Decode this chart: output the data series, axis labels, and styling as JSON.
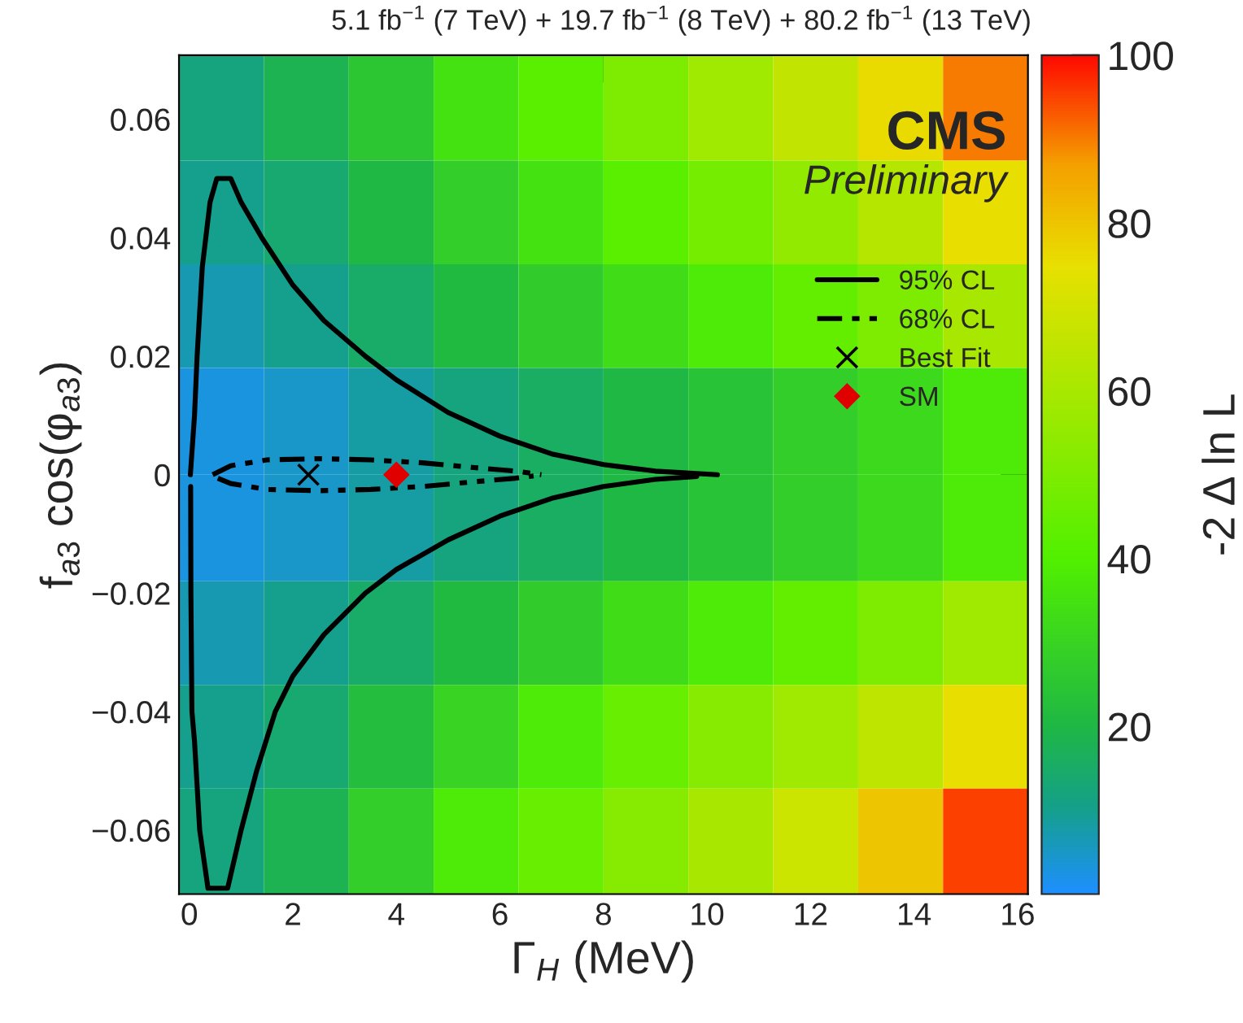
{
  "chart_data": {
    "type": "heatmap",
    "title": "5.1 fb$^{−1}$ (7 TeV) + 19.7 fb$^{−1}$ (8 TeV) + 80.2 fb$^{−1}$ (13 TeV)",
    "xlabel": "Γ$_{H}$ (MeV)",
    "ylabel": "f$_{a3}$ cos(φ$_{a3}$)",
    "clabel": "-2 Δ ln L",
    "annotations": [
      "CMS",
      "Preliminary"
    ],
    "x": [
      0.62,
      2.26,
      3.9,
      5.54,
      7.18,
      8.82,
      10.46,
      12.1,
      13.74,
      15.38
    ],
    "y": [
      0.062,
      0.044,
      0.027,
      0.009,
      -0.009,
      -0.027,
      -0.044,
      -0.062
    ],
    "cells": [
      [
        12,
        18,
        25,
        35,
        42,
        50,
        58,
        66,
        76,
        90
      ],
      [
        10,
        14,
        20,
        28,
        35,
        42,
        48,
        55,
        63,
        75
      ],
      [
        7,
        10,
        15,
        21,
        27,
        33,
        38,
        44,
        50,
        60
      ],
      [
        3,
        5,
        8,
        12,
        16,
        20,
        24,
        28,
        32,
        38
      ],
      [
        3,
        5,
        8,
        12,
        16,
        20,
        24,
        28,
        32,
        38
      ],
      [
        7,
        10,
        15,
        21,
        27,
        33,
        38,
        44,
        50,
        58
      ],
      [
        10,
        14,
        22,
        30,
        38,
        45,
        52,
        58,
        65,
        75
      ],
      [
        12,
        18,
        28,
        38,
        45,
        52,
        60,
        68,
        80,
        95
      ]
    ],
    "clim": [
      0,
      100
    ],
    "cticks": [
      20,
      40,
      60,
      80,
      100
    ],
    "xlim": [
      -0.2,
      16.2
    ],
    "xticks": [
      0,
      2,
      4,
      6,
      8,
      10,
      12,
      14,
      16
    ],
    "ylim": [
      -0.0708,
      0.0708
    ],
    "yticks": [
      {
        "value": -0.06,
        "label": "−0.06"
      },
      {
        "value": -0.04,
        "label": "−0.04"
      },
      {
        "value": -0.02,
        "label": "−0.02"
      },
      0,
      0.02,
      0.04,
      0.06
    ],
    "legend": "right",
    "series": [
      {
        "name": "95% CL",
        "type": "line",
        "line_style": "solid",
        "color": "#000000",
        "x": [
          0.02,
          0.1,
          0.15,
          0.25,
          0.4,
          0.53,
          0.8,
          1.0,
          1.4,
          2,
          2.6,
          3.4,
          4,
          5,
          6,
          7,
          8,
          9,
          10.2
        ],
        "values": [
          0,
          0.01,
          0.02,
          0.035,
          0.046,
          0.05,
          0.05,
          0.046,
          0.04,
          0.032,
          0.026,
          0.02,
          0.016,
          0.0105,
          0.0065,
          0.0035,
          0.0017,
          0.0006,
          0
        ]
      },
      {
        "type": "line",
        "line_style": "solid",
        "color": "#000000",
        "x": [
          0.025,
          0.03,
          0.05,
          0.1,
          0.2,
          0.36,
          0.74,
          1.0,
          1.3,
          1.66,
          2,
          2.6,
          3.4,
          4,
          5,
          6,
          7,
          8,
          9,
          9.8
        ],
        "values": [
          -0.002,
          -0.02,
          -0.04,
          -0.045,
          -0.06,
          -0.0698,
          -0.0698,
          -0.06,
          -0.05,
          -0.04,
          -0.034,
          -0.027,
          -0.02,
          -0.016,
          -0.011,
          -0.007,
          -0.004,
          -0.002,
          -0.0008,
          -0.0003
        ]
      },
      {
        "name": "68% CL",
        "type": "line",
        "line_style": "dashed",
        "color": "#000000",
        "x": [
          0.45,
          0.8,
          1.5,
          2.5,
          3.5,
          4.5,
          5.5,
          6.3,
          6.8
        ],
        "values": [
          0,
          0.0015,
          0.0025,
          0.0027,
          0.0025,
          0.002,
          0.0012,
          0.0006,
          0
        ]
      },
      {
        "type": "line",
        "line_style": "dashed",
        "color": "#000000",
        "x": [
          0.55,
          0.8,
          1.5,
          2.5,
          3.5,
          4.5,
          5.5,
          6.3,
          6.65
        ],
        "values": [
          -0.0006,
          -0.0015,
          -0.0025,
          -0.0027,
          -0.0025,
          -0.002,
          -0.0012,
          -0.0006,
          -0.0002
        ]
      },
      {
        "name": "Best Fit",
        "type": "scatter",
        "marker": "cross",
        "color": "#000000",
        "x": [
          2.3
        ],
        "values": [
          0
        ]
      },
      {
        "name": "SM",
        "type": "scatter",
        "marker": "diamond",
        "color": "#e00000",
        "x": [
          4.0
        ],
        "values": [
          0
        ]
      }
    ]
  }
}
